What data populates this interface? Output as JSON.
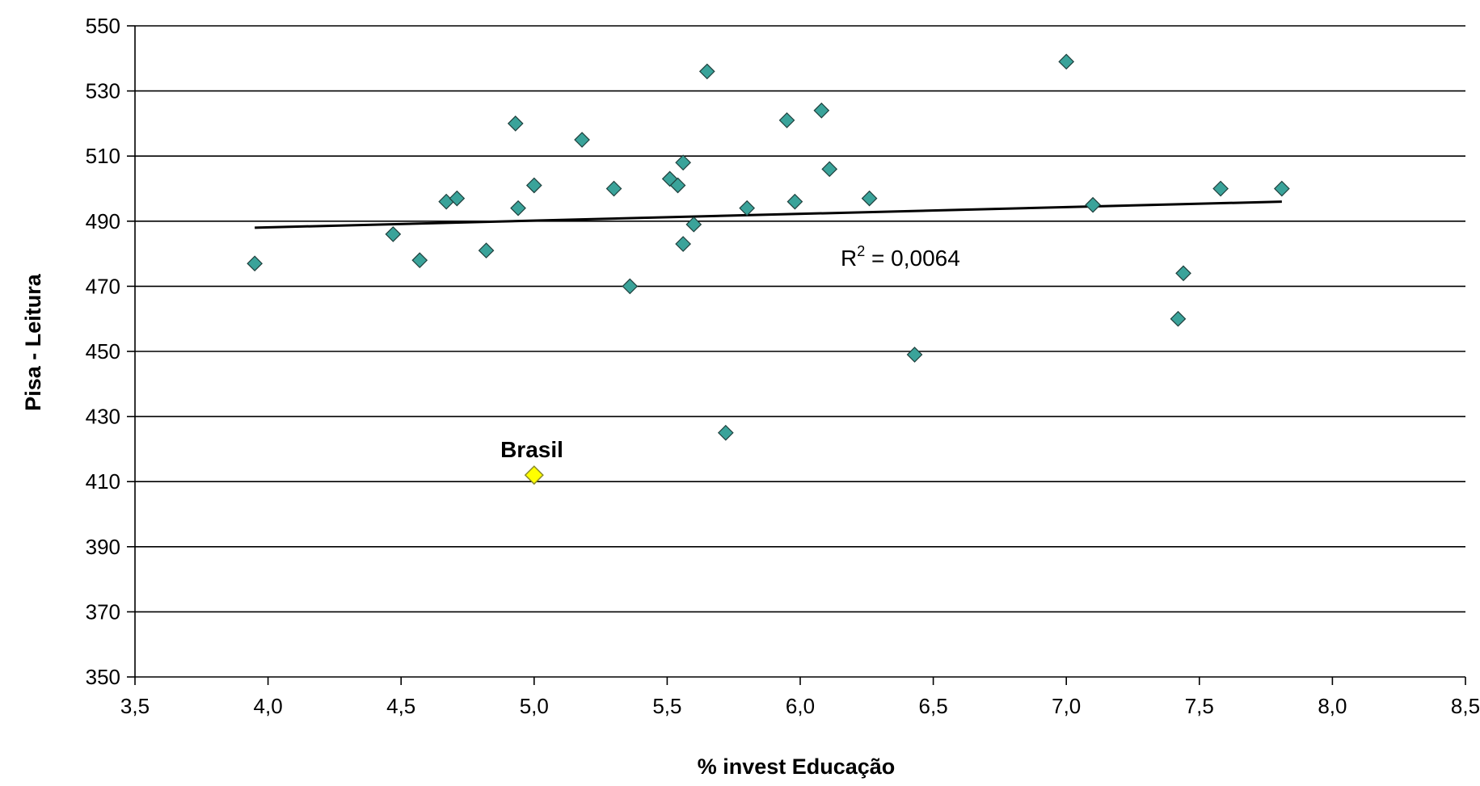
{
  "chart_data": {
    "type": "scatter",
    "title": "",
    "xlabel": "% invest Educação",
    "ylabel": "Pisa - Leitura",
    "xlim": [
      3.5,
      8.5
    ],
    "ylim": [
      350,
      550
    ],
    "x_ticks": [
      "3,5",
      "4,0",
      "4,5",
      "5,0",
      "5,5",
      "6,0",
      "6,5",
      "7,0",
      "7,5",
      "8,0",
      "8,5"
    ],
    "y_ticks": [
      "350",
      "370",
      "390",
      "410",
      "430",
      "450",
      "470",
      "490",
      "510",
      "530",
      "550"
    ],
    "grid": "horizontal",
    "colors": {
      "points": "#3aa39a",
      "highlight": "#ffff00",
      "trendline": "#000000",
      "grid": "#000000"
    },
    "series": [
      {
        "points": [
          {
            "x": 3.95,
            "y": 477
          },
          {
            "x": 4.47,
            "y": 486
          },
          {
            "x": 4.57,
            "y": 478
          },
          {
            "x": 4.67,
            "y": 496
          },
          {
            "x": 4.71,
            "y": 497
          },
          {
            "x": 4.82,
            "y": 481
          },
          {
            "x": 4.93,
            "y": 520
          },
          {
            "x": 4.94,
            "y": 494
          },
          {
            "x": 5.0,
            "y": 501
          },
          {
            "x": 5.18,
            "y": 515
          },
          {
            "x": 5.3,
            "y": 500
          },
          {
            "x": 5.36,
            "y": 470
          },
          {
            "x": 5.51,
            "y": 503
          },
          {
            "x": 5.54,
            "y": 501
          },
          {
            "x": 5.56,
            "y": 508
          },
          {
            "x": 5.56,
            "y": 483
          },
          {
            "x": 5.6,
            "y": 489
          },
          {
            "x": 5.65,
            "y": 536
          },
          {
            "x": 5.72,
            "y": 425
          },
          {
            "x": 5.8,
            "y": 494
          },
          {
            "x": 5.95,
            "y": 521
          },
          {
            "x": 5.98,
            "y": 496
          },
          {
            "x": 6.08,
            "y": 524
          },
          {
            "x": 6.11,
            "y": 506
          },
          {
            "x": 6.26,
            "y": 497
          },
          {
            "x": 6.43,
            "y": 449
          },
          {
            "x": 7.0,
            "y": 539
          },
          {
            "x": 7.1,
            "y": 495
          },
          {
            "x": 7.42,
            "y": 460
          },
          {
            "x": 7.44,
            "y": 474
          },
          {
            "x": 7.58,
            "y": 500
          },
          {
            "x": 7.81,
            "y": 500
          }
        ]
      }
    ],
    "highlight": {
      "label": "Brasil",
      "x": 5.0,
      "y": 412
    },
    "trendline": {
      "type": "linear",
      "x": [
        3.95,
        7.81
      ],
      "y": [
        488,
        496
      ],
      "label_base": "R",
      "label_sup": "2",
      "label_rest": " = 0,0064"
    }
  }
}
